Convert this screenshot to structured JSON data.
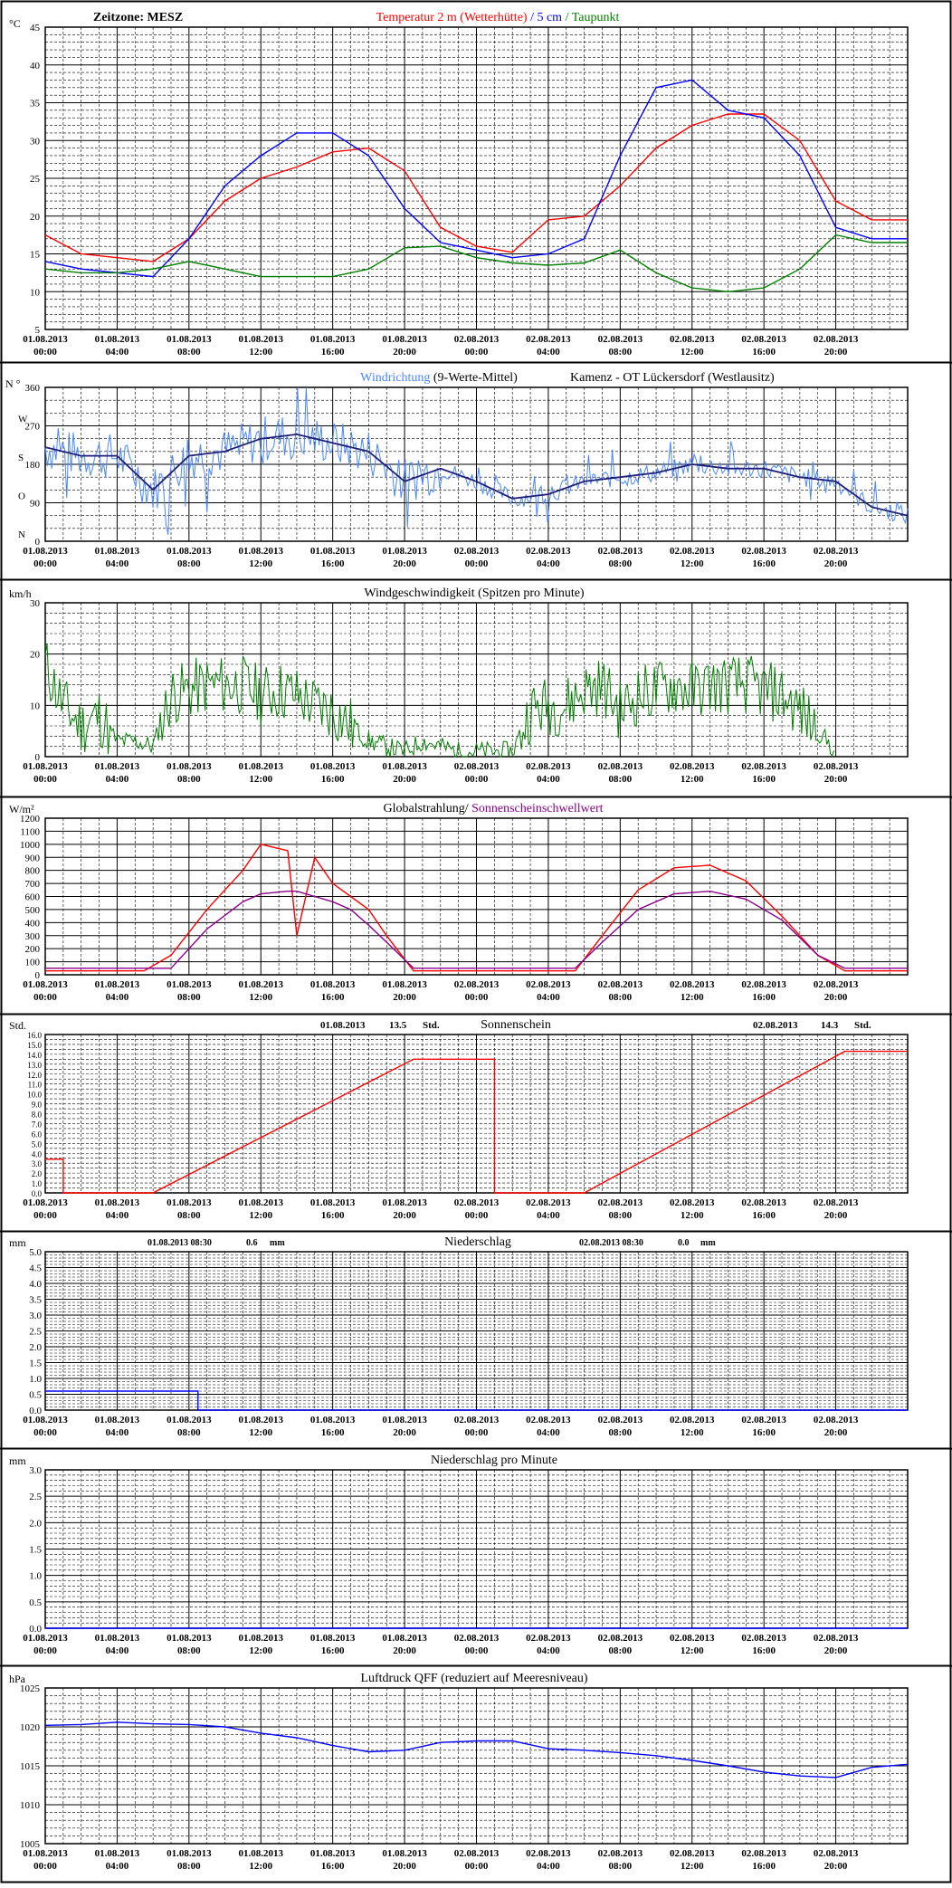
{
  "time_ticks": [
    "01.08.2013|00:00",
    "01.08.2013|04:00",
    "01.08.2013|08:00",
    "01.08.2013|12:00",
    "01.08.2013|16:00",
    "01.08.2013|20:00",
    "02.08.2013|00:00",
    "02.08.2013|04:00",
    "02.08.2013|08:00",
    "02.08.2013|12:00",
    "02.08.2013|16:00",
    "02.08.2013|20:00"
  ],
  "colors": {
    "frame": "#000000",
    "grid_minor": "#000000",
    "red": "#ff0000",
    "blue": "#0000ff",
    "lightblue": "#4a86ff",
    "green": "#007f00",
    "purple": "#8b008b",
    "navy": "#1f1f7a"
  },
  "chart_data": [
    {
      "type": "line",
      "id": "temperature",
      "unit": "°C",
      "timezone": "Zeitzone: MESZ",
      "title_parts": [
        {
          "text": "Temperatur 2 m (Wetterhütte)",
          "color": "#ff0000"
        },
        {
          "text": "  /  ",
          "color": "#0000ff"
        },
        {
          "text": "5 cm",
          "color": "#0000ff"
        },
        {
          "text": " / ",
          "color": "#007f00"
        },
        {
          "text": "Taupunkt",
          "color": "#007f00"
        }
      ],
      "ylim": [
        5,
        45
      ],
      "yticks": [
        5,
        10,
        15,
        20,
        25,
        30,
        35,
        40,
        45
      ],
      "x_hours": [
        0,
        2,
        4,
        6,
        8,
        10,
        12,
        14,
        16,
        18,
        20,
        22,
        24,
        26,
        28,
        30,
        32,
        34,
        36,
        38,
        40,
        42,
        44,
        46,
        48
      ],
      "series": [
        {
          "name": "Temperatur 2 m (Wetterhütte)",
          "color": "#ff0000",
          "values": [
            17.5,
            15,
            14.5,
            14,
            17,
            22,
            25,
            26.5,
            28.5,
            29,
            26,
            18.5,
            16,
            15.2,
            19.5,
            20,
            24,
            29,
            32,
            33.5,
            33.5,
            30,
            22,
            19.5,
            19.5
          ]
        },
        {
          "name": "5 cm",
          "color": "#0000ff",
          "values": [
            14,
            13,
            12.5,
            12,
            17,
            24,
            28,
            31,
            31,
            28,
            21,
            16.5,
            15.5,
            14.5,
            15,
            17,
            28,
            37,
            38,
            34,
            33,
            28,
            18.5,
            17,
            17
          ]
        },
        {
          "name": "Taupunkt",
          "color": "#007f00",
          "values": [
            13,
            12.5,
            12.5,
            13,
            14,
            13,
            12,
            12,
            12,
            13,
            15.8,
            16,
            14.5,
            13.8,
            13.5,
            13.8,
            15.5,
            12.5,
            10.5,
            10,
            10.5,
            13,
            17.5,
            16.5,
            16.5
          ]
        }
      ]
    },
    {
      "type": "line",
      "id": "wind_direction",
      "unit": "N °",
      "title_parts": [
        {
          "text": "Windrichtung",
          "color": "#4a86ff"
        },
        {
          "text": " (9-Werte-Mittel)",
          "color": "#000000"
        }
      ],
      "station": "Kamenz - OT Lückersdorf (Westlausitz)",
      "ylim": [
        0,
        360
      ],
      "yticks": [
        0,
        90,
        180,
        270,
        360
      ],
      "ytick_labels": [
        {
          "v": 0,
          "num": "0",
          "dir": "N"
        },
        {
          "v": 90,
          "num": "90",
          "dir": "O"
        },
        {
          "v": 180,
          "num": "180",
          "dir": "S"
        },
        {
          "v": 270,
          "num": "270",
          "dir": "W"
        },
        {
          "v": 360,
          "num": "360",
          "dir": "N °"
        }
      ],
      "x_hours": [
        0,
        2,
        4,
        6,
        8,
        10,
        12,
        14,
        16,
        18,
        20,
        22,
        24,
        26,
        28,
        30,
        32,
        34,
        36,
        38,
        40,
        42,
        44,
        46,
        48
      ],
      "series": [
        {
          "name": "Windrichtung (9-Werte-Mittel)",
          "color": "#1f1f7a",
          "values": [
            220,
            200,
            200,
            120,
            200,
            210,
            240,
            250,
            230,
            210,
            140,
            170,
            140,
            100,
            110,
            140,
            150,
            160,
            180,
            170,
            170,
            150,
            140,
            80,
            60
          ]
        }
      ]
    },
    {
      "type": "line",
      "id": "wind_speed",
      "unit": "km/h",
      "title": "Windgeschwindigkeit (Spitzen pro Minute)",
      "ylim": [
        0,
        30
      ],
      "yticks": [
        0,
        10,
        20,
        30
      ],
      "x_hours": [
        0,
        1,
        2,
        3,
        4,
        5,
        6,
        7,
        8,
        9,
        10,
        11,
        12,
        13,
        14,
        15,
        16,
        17,
        18,
        19,
        20,
        21,
        22,
        23,
        24,
        25,
        26,
        27,
        28,
        29,
        30,
        31,
        32,
        33,
        34,
        35,
        36,
        37,
        38,
        39,
        40,
        41,
        42,
        43,
        44
      ],
      "series": [
        {
          "name": "Windgeschwindigkeit",
          "color": "#007f00",
          "values": [
            18,
            10,
            6,
            8,
            3,
            3,
            2,
            12,
            13,
            14,
            14,
            14,
            12,
            13,
            12,
            10,
            9,
            6,
            3,
            2,
            1,
            3,
            2,
            1,
            1,
            1,
            1,
            9,
            10,
            10,
            13,
            14,
            9,
            12,
            13,
            14,
            13,
            14,
            14,
            14,
            13,
            12,
            9,
            5,
            1
          ]
        }
      ]
    },
    {
      "type": "line",
      "id": "radiation",
      "unit": "W/m²",
      "title_parts": [
        {
          "text": "Globalstrahlung/ ",
          "color": "#000000"
        },
        {
          "text": "Sonnenscheinschwellwert",
          "color": "#8b008b"
        }
      ],
      "ylim": [
        0,
        1200
      ],
      "yticks": [
        0,
        100,
        200,
        300,
        400,
        500,
        600,
        700,
        800,
        900,
        1000,
        1100,
        1200
      ],
      "x_hours": [
        0,
        5.5,
        7,
        9,
        11,
        12,
        13.5,
        14,
        15,
        16,
        17,
        18,
        19,
        20.5,
        21,
        24,
        28,
        29.5,
        31,
        33,
        35,
        37,
        39,
        41,
        43,
        44.5,
        46,
        48
      ],
      "series": [
        {
          "name": "Globalstrahlung",
          "color": "#ff0000",
          "values": [
            30,
            30,
            150,
            500,
            800,
            1000,
            950,
            300,
            900,
            700,
            600,
            500,
            300,
            30,
            30,
            30,
            30,
            30,
            300,
            650,
            820,
            840,
            720,
            450,
            150,
            30,
            30,
            30
          ]
        },
        {
          "name": "Sonnenscheinschwellwert",
          "color": "#8b008b",
          "values": [
            50,
            50,
            50,
            350,
            560,
            620,
            640,
            640,
            600,
            560,
            500,
            380,
            250,
            50,
            50,
            50,
            50,
            50,
            250,
            500,
            620,
            640,
            580,
            420,
            150,
            50,
            50,
            50
          ]
        }
      ]
    },
    {
      "type": "line",
      "id": "sunshine",
      "unit": "Std.",
      "title": "Sonnenschein",
      "day1_date": "01.08.2013",
      "day1_value": "13.5",
      "day1_unit": "Std.",
      "day2_date": "02.08.2013",
      "day2_value": "14.3",
      "day2_unit": "Std.",
      "ylim": [
        0,
        16
      ],
      "yticks": [
        0,
        0.5,
        1,
        1.5,
        2,
        2.5,
        3,
        3.5,
        4,
        4.5,
        5,
        5.5,
        6,
        6.5,
        7,
        7.5,
        8,
        8.5,
        9,
        9.5,
        10,
        10.5,
        11,
        11.5,
        12,
        12.5,
        13,
        13.5,
        14,
        14.5,
        15,
        15.5,
        16
      ],
      "ytick_labels": [
        "0.0",
        "1.0",
        "2.0",
        "3.0",
        "4.0",
        "5.0",
        "6.0",
        "7.0",
        "8.0",
        "9.0",
        "10.0",
        "11.0",
        "12.0",
        "13.0",
        "14.0",
        "15.0",
        "16.0"
      ],
      "x_hours": [
        0,
        1,
        1,
        6,
        20.5,
        25,
        25,
        30,
        44.5,
        48
      ],
      "series": [
        {
          "name": "Sonnenschein",
          "color": "#ff0000",
          "values": [
            3.4,
            3.4,
            0,
            0,
            13.5,
            13.5,
            0,
            0,
            14.3,
            14.3
          ]
        }
      ]
    },
    {
      "type": "line",
      "id": "precipitation",
      "unit": "mm",
      "title": "Niederschlag",
      "day1_label": "01.08.2013 08:30",
      "day1_value": "0.6",
      "day1_unit": "mm",
      "day2_label": "02.08.2013 08:30",
      "day2_value": "0.0",
      "day2_unit": "mm",
      "ylim": [
        0,
        5
      ],
      "yticks": [
        0,
        0.5,
        1,
        1.5,
        2,
        2.5,
        3,
        3.5,
        4,
        4.5,
        5
      ],
      "ytick_labels": [
        "0.0",
        "0.5",
        "1.0",
        "1.5",
        "2.0",
        "2.5",
        "3.0",
        "3.5",
        "4.0",
        "4.5",
        "5.0"
      ],
      "x_hours": [
        0,
        8.5,
        8.5,
        48
      ],
      "series": [
        {
          "name": "Niederschlag",
          "color": "#0000ff",
          "values": [
            0.6,
            0.6,
            0,
            0
          ]
        }
      ]
    },
    {
      "type": "line",
      "id": "precip_minute",
      "unit": "mm",
      "title": "Niederschlag pro Minute",
      "ylim": [
        0,
        3
      ],
      "yticks": [
        0,
        0.5,
        1,
        1.5,
        2,
        2.5,
        3
      ],
      "ytick_labels": [
        "0.0",
        "0.5",
        "1.0",
        "1.5",
        "2.0",
        "2.5",
        "3.0"
      ],
      "x_hours": [
        0,
        48
      ],
      "series": [
        {
          "name": "Niederschlag pro Minute",
          "color": "#0000ff",
          "values": [
            0,
            0
          ]
        }
      ]
    },
    {
      "type": "line",
      "id": "pressure",
      "unit": "hPa",
      "title": "Luftdruck QFF (reduziert auf Meeresniveau)",
      "ylim": [
        1005,
        1025
      ],
      "yticks": [
        1005,
        1010,
        1015,
        1020,
        1025
      ],
      "x_hours": [
        0,
        2,
        4,
        6,
        8,
        10,
        12,
        14,
        16,
        18,
        20,
        22,
        24,
        26,
        28,
        30,
        32,
        34,
        36,
        38,
        40,
        42,
        44,
        46,
        48
      ],
      "series": [
        {
          "name": "Luftdruck QFF",
          "color": "#0000ff",
          "values": [
            1020.2,
            1020.3,
            1020.6,
            1020.4,
            1020.3,
            1020,
            1019.2,
            1018.6,
            1017.6,
            1016.8,
            1017,
            1018,
            1018.2,
            1018.2,
            1017.2,
            1017,
            1016.7,
            1016.3,
            1015.7,
            1015,
            1014.2,
            1013.7,
            1013.5,
            1014.8,
            1015.2
          ]
        }
      ]
    }
  ]
}
